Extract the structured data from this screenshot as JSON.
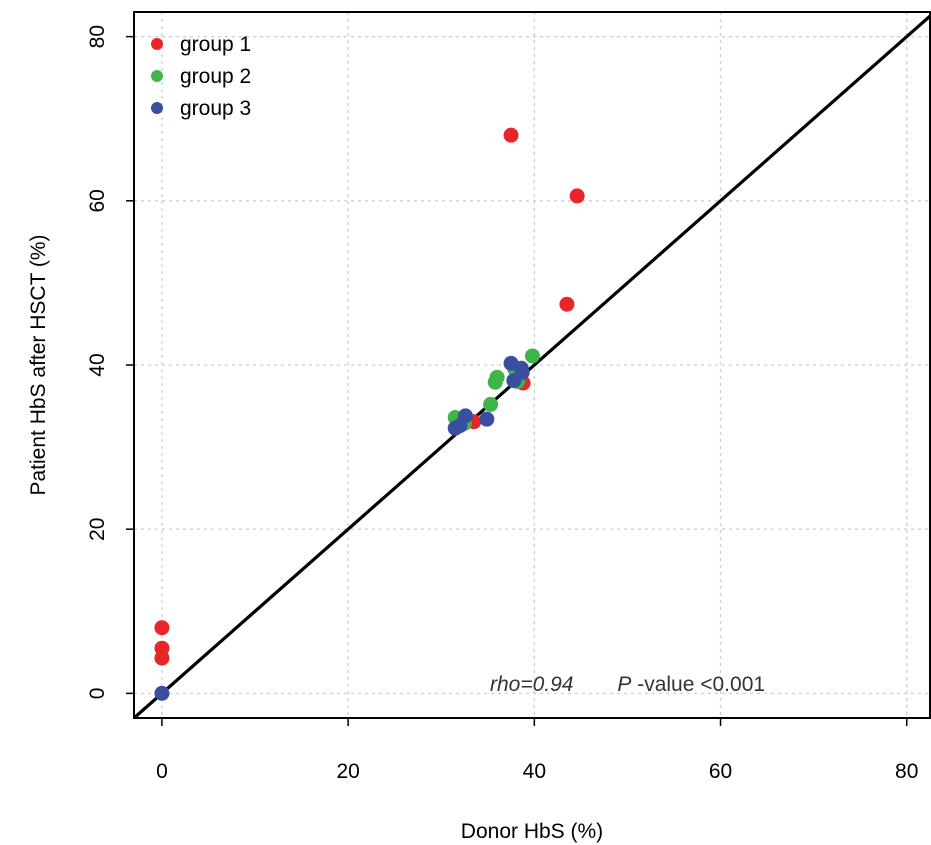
{
  "chart_data": {
    "type": "scatter",
    "xlabel": "Donor HbS (%)",
    "ylabel": "Patient HbS after HSCT (%)",
    "xlim": [
      -3,
      82.5
    ],
    "ylim": [
      -3,
      83
    ],
    "xticks": [
      0,
      20,
      40,
      60,
      80
    ],
    "yticks": [
      0,
      20,
      40,
      60,
      80
    ],
    "grid": true,
    "legend_position": "top-left",
    "series": [
      {
        "name": "group 1",
        "color": "#e8262a",
        "points": [
          [
            0,
            8.0
          ],
          [
            0,
            5.5
          ],
          [
            0,
            4.3
          ],
          [
            37.5,
            68.0
          ],
          [
            44.6,
            60.6
          ],
          [
            43.5,
            47.4
          ],
          [
            38.8,
            37.8
          ],
          [
            33.5,
            33.1
          ],
          [
            32.5,
            33.3
          ]
        ]
      },
      {
        "name": "group 2",
        "color": "#3db549",
        "points": [
          [
            31.5,
            33.6
          ],
          [
            32.5,
            32.9
          ],
          [
            35.3,
            35.2
          ],
          [
            35.8,
            37.9
          ],
          [
            36.0,
            38.5
          ],
          [
            39.8,
            41.1
          ],
          [
            37.9,
            39.5
          ],
          [
            38.2,
            38.0
          ]
        ]
      },
      {
        "name": "group 3",
        "color": "#3a4ea0",
        "points": [
          [
            0,
            0
          ],
          [
            31.5,
            32.3
          ],
          [
            32.0,
            32.6
          ],
          [
            32.6,
            33.8
          ],
          [
            34.9,
            33.4
          ],
          [
            37.5,
            40.2
          ],
          [
            37.8,
            38.1
          ],
          [
            38.6,
            39.6
          ],
          [
            38.7,
            39.1
          ]
        ]
      }
    ],
    "reference_line": {
      "slope": 1,
      "intercept": 0,
      "label": "identity"
    },
    "annotation": {
      "rho_text": "rho=0.94",
      "p_italic": "P",
      "p_rest": "-value <0.001"
    }
  }
}
